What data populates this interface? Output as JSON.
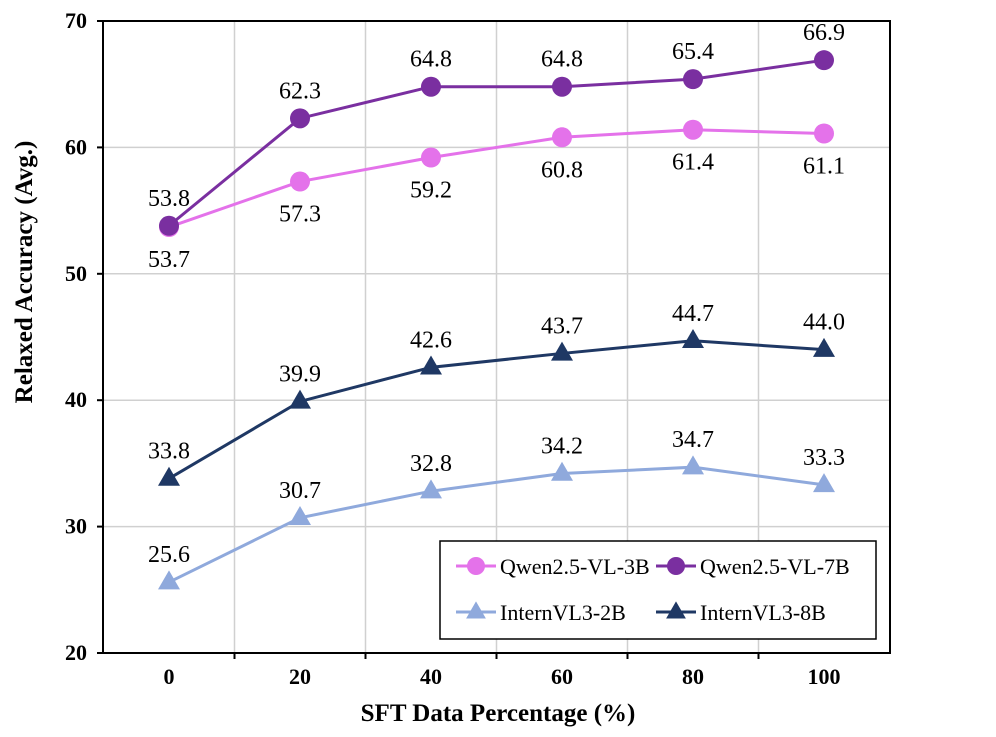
{
  "chart_data": {
    "type": "line",
    "xlabel": "SFT Data Percentage (%)",
    "ylabel": "Relaxed Accuracy (Avg.)",
    "x": [
      0,
      20,
      40,
      60,
      80,
      100
    ],
    "ylim": [
      20,
      70
    ],
    "yticks": [
      20,
      30,
      40,
      50,
      60,
      70
    ],
    "grid": true,
    "legend_position": "bottom-right",
    "series": [
      {
        "name": "Qwen2.5-VL-3B",
        "marker": "circle",
        "color": "#e472ea",
        "values": [
          53.7,
          57.3,
          59.2,
          60.8,
          61.4,
          61.1
        ],
        "label_position": [
          "below",
          "below",
          "below",
          "below",
          "below",
          "below"
        ]
      },
      {
        "name": "Qwen2.5-VL-7B",
        "marker": "circle",
        "color": "#7a2fa0",
        "values": [
          53.8,
          62.3,
          64.8,
          64.8,
          65.4,
          66.9
        ],
        "label_position": [
          "above",
          "above",
          "above",
          "above",
          "above",
          "above"
        ]
      },
      {
        "name": "InternVL3-2B",
        "marker": "triangle",
        "color": "#8fa9dc",
        "values": [
          25.6,
          30.7,
          32.8,
          34.2,
          34.7,
          33.3
        ],
        "label_position": [
          "above",
          "above",
          "above",
          "above",
          "above",
          "above"
        ]
      },
      {
        "name": "InternVL3-8B",
        "marker": "triangle",
        "color": "#1f3864",
        "values": [
          33.8,
          39.9,
          42.6,
          43.7,
          44.7,
          44.0
        ],
        "label_position": [
          "above",
          "above",
          "above",
          "above",
          "above",
          "above"
        ]
      }
    ],
    "legend_order": [
      0,
      1,
      2,
      3
    ]
  }
}
